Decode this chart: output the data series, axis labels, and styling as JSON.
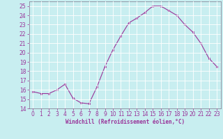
{
  "x": [
    0,
    1,
    2,
    3,
    4,
    5,
    6,
    7,
    8,
    9,
    10,
    11,
    12,
    13,
    14,
    15,
    16,
    17,
    18,
    19,
    20,
    21,
    22,
    23
  ],
  "y": [
    15.8,
    15.6,
    15.6,
    16.0,
    16.6,
    15.1,
    14.6,
    14.5,
    16.3,
    18.5,
    20.3,
    21.8,
    23.2,
    23.7,
    24.3,
    25.0,
    25.0,
    24.5,
    24.0,
    23.0,
    22.2,
    21.0,
    19.4,
    18.5
  ],
  "line_color": "#993399",
  "marker_color": "#993399",
  "bg_color": "#c8eef0",
  "grid_color": "#ffffff",
  "xlabel": "Windchill (Refroidissement éolien,°C)",
  "xlabel_color": "#993399",
  "tick_color": "#993399",
  "spine_color": "#888899",
  "ylim": [
    14,
    25.5
  ],
  "xlim": [
    -0.5,
    23.5
  ],
  "yticks": [
    14,
    15,
    16,
    17,
    18,
    19,
    20,
    21,
    22,
    23,
    24,
    25
  ],
  "xticks": [
    0,
    1,
    2,
    3,
    4,
    5,
    6,
    7,
    8,
    9,
    10,
    11,
    12,
    13,
    14,
    15,
    16,
    17,
    18,
    19,
    20,
    21,
    22,
    23
  ],
  "tick_fontsize": 5.5,
  "xlabel_fontsize": 5.5
}
